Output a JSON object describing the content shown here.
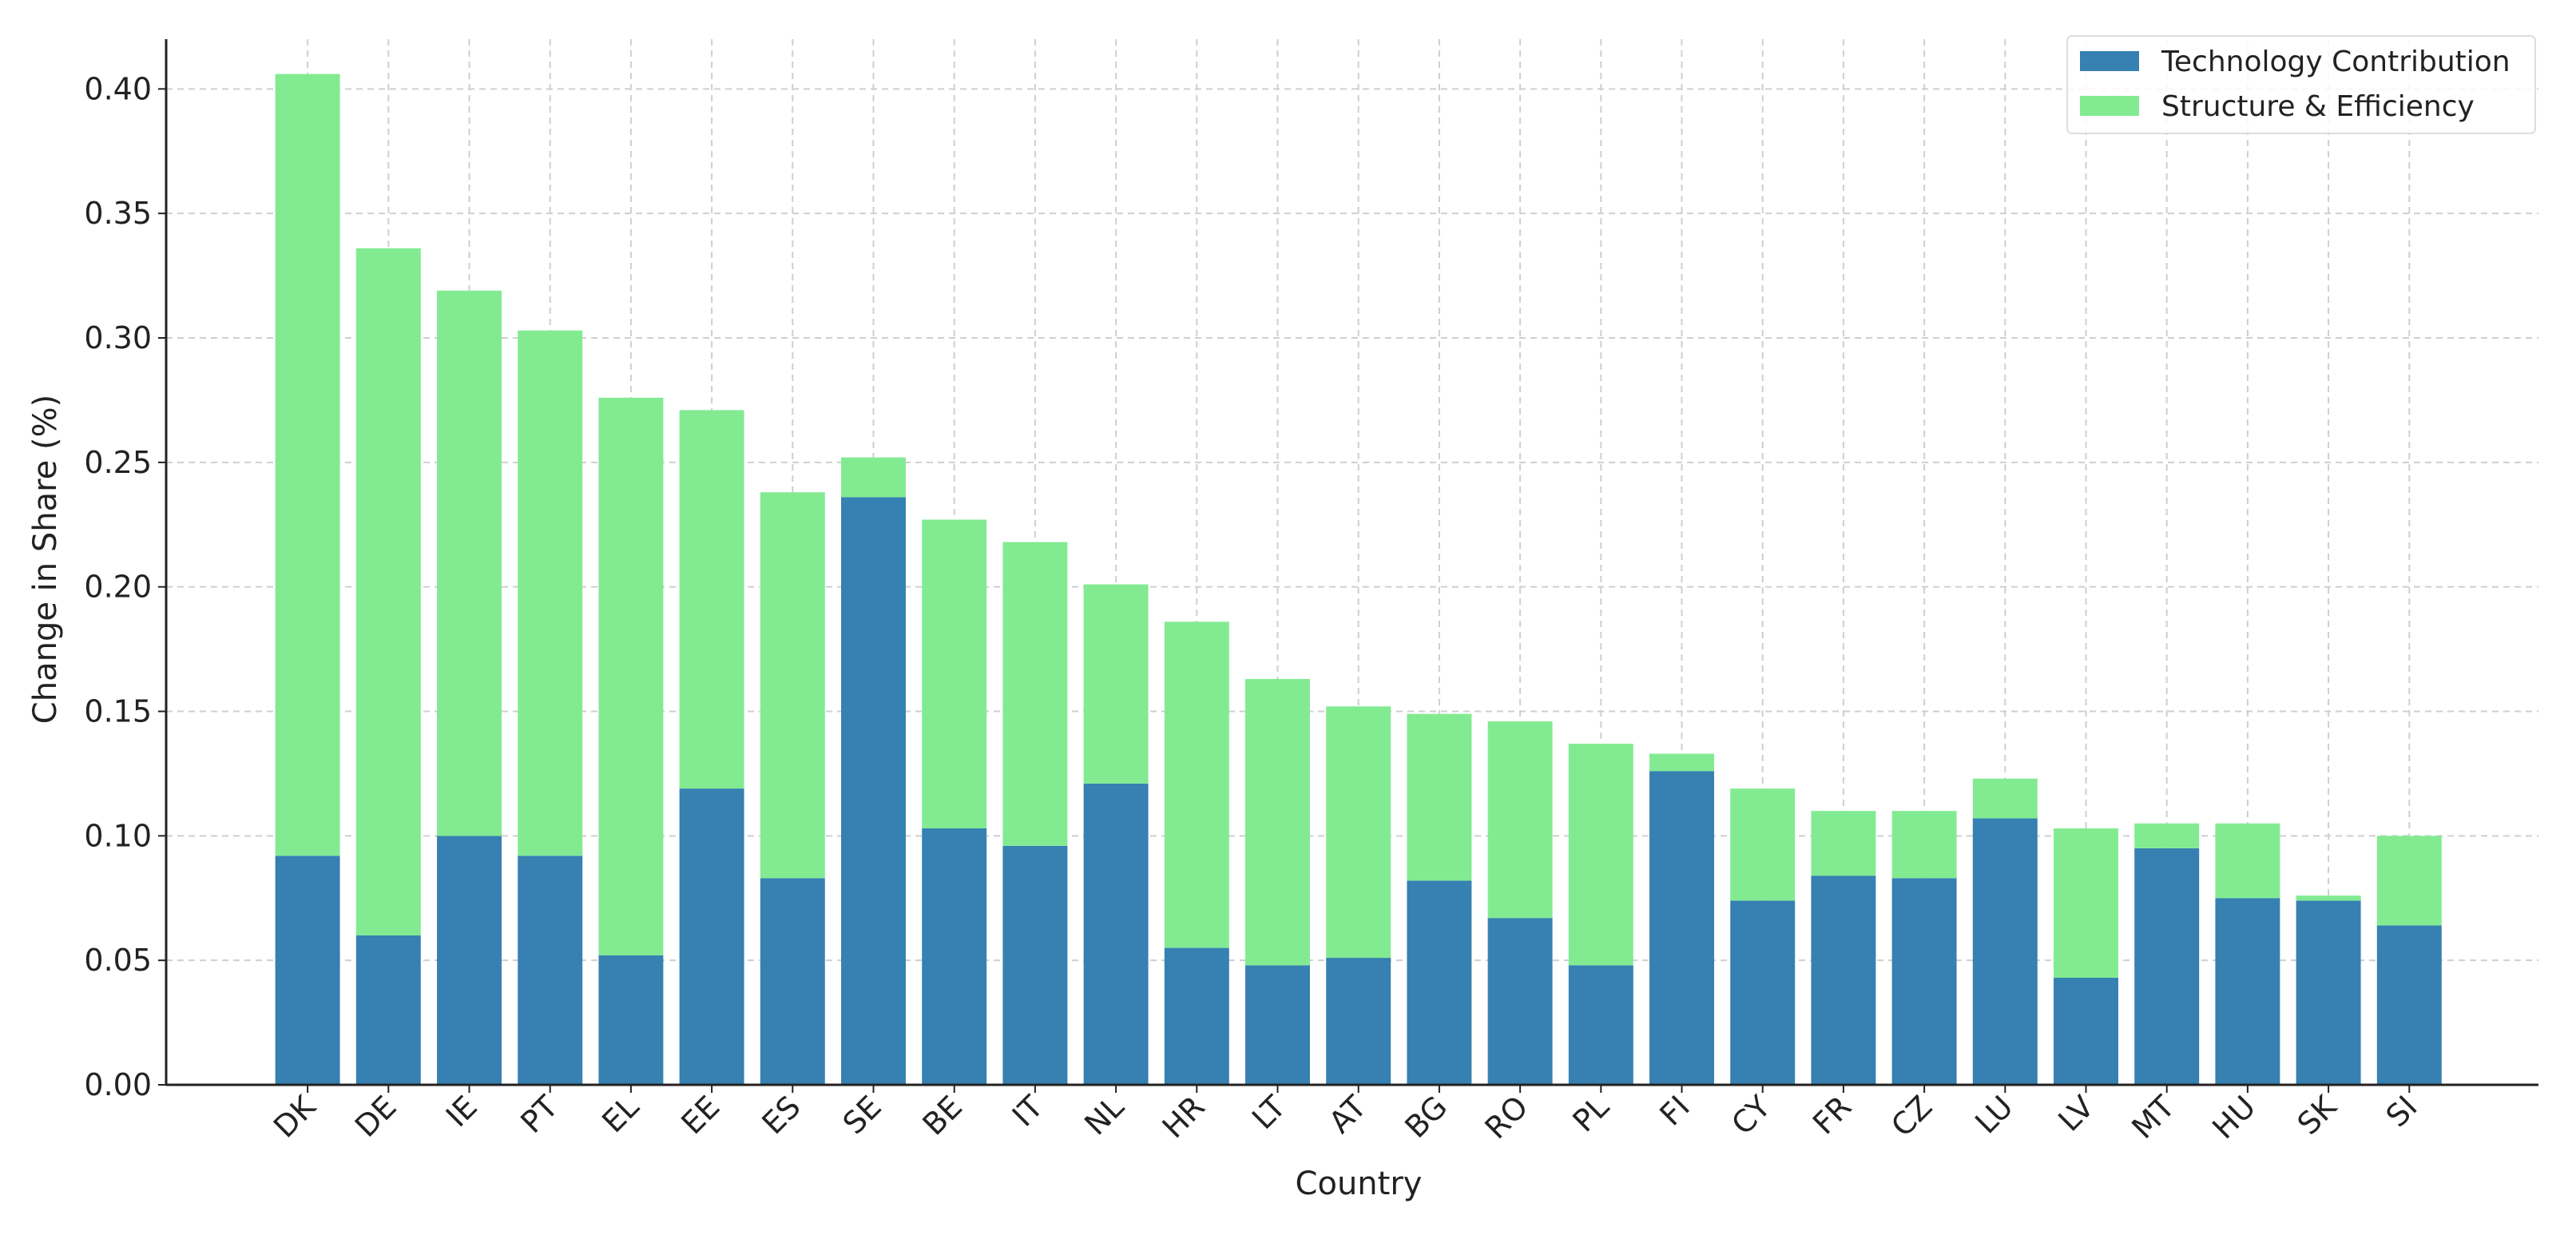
{
  "chart_data": {
    "type": "stacked_bar",
    "xlabel": "Country",
    "ylabel": "Change in Share (%)",
    "categories": [
      "DK",
      "DE",
      "IE",
      "PT",
      "EL",
      "EE",
      "ES",
      "SE",
      "BE",
      "IT",
      "NL",
      "HR",
      "LT",
      "AT",
      "BG",
      "RO",
      "PL",
      "FI",
      "CY",
      "FR",
      "CZ",
      "LU",
      "LV",
      "MT",
      "HU",
      "SK",
      "SI"
    ],
    "series": [
      {
        "name": "Technology Contribution",
        "color": "#3680b2",
        "values": [
          0.092,
          0.06,
          0.1,
          0.092,
          0.052,
          0.119,
          0.083,
          0.236,
          0.103,
          0.096,
          0.121,
          0.055,
          0.048,
          0.051,
          0.082,
          0.067,
          0.048,
          0.126,
          0.074,
          0.084,
          0.083,
          0.107,
          0.043,
          0.095,
          0.075,
          0.074,
          0.064
        ]
      },
      {
        "name": "Structure & Efficiency",
        "color": "#82eb92",
        "values": [
          0.314,
          0.276,
          0.219,
          0.211,
          0.224,
          0.152,
          0.155,
          0.016,
          0.124,
          0.122,
          0.08,
          0.131,
          0.115,
          0.101,
          0.067,
          0.079,
          0.089,
          0.007,
          0.045,
          0.026,
          0.027,
          0.016,
          0.06,
          0.01,
          0.03,
          0.002,
          0.036
        ]
      }
    ],
    "ylim": [
      0,
      0.42
    ],
    "yticks": [
      {
        "value": 0,
        "label": "0.00"
      },
      0.05,
      {
        "value": 0.1,
        "label": "0.10"
      },
      0.15,
      {
        "value": 0.2,
        "label": "0.20"
      },
      0.25,
      {
        "value": 0.3,
        "label": "0.30"
      },
      0.35,
      {
        "value": 0.4,
        "label": "0.40"
      }
    ],
    "grid": true,
    "legend": "upper right"
  }
}
